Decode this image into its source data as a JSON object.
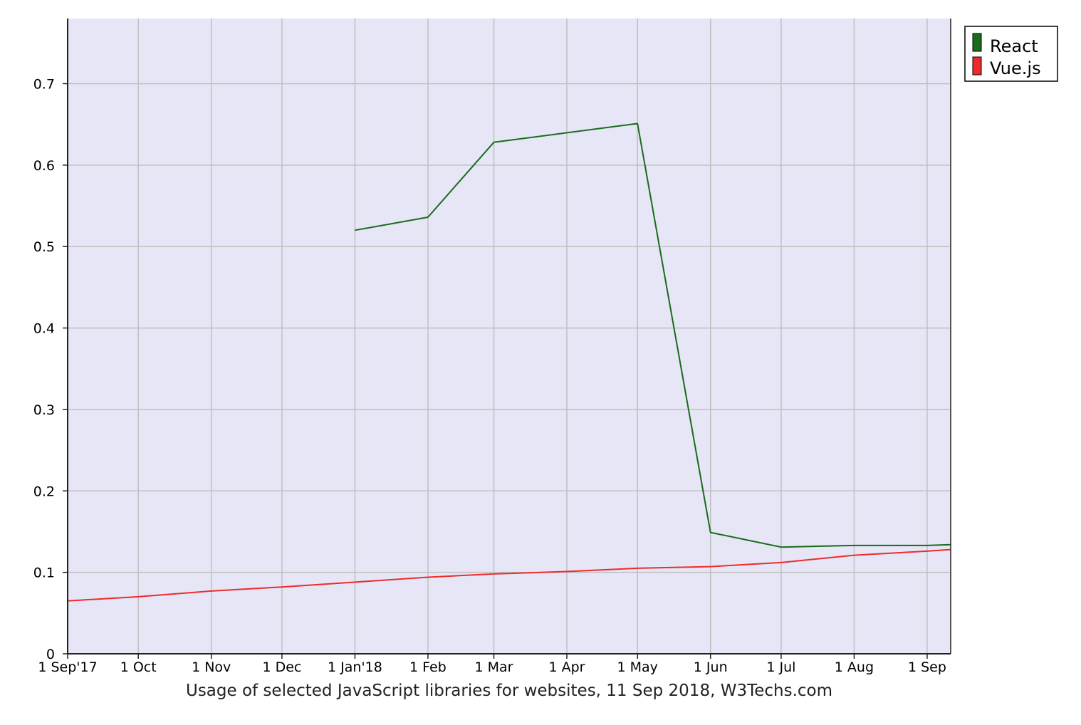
{
  "chart_data": {
    "type": "line",
    "title": "",
    "caption": "Usage of selected JavaScript libraries for websites, 11 Sep 2018, W3Techs.com",
    "xlabel": "",
    "ylabel": "",
    "ylim": [
      0,
      0.78
    ],
    "y_ticks": [
      {
        "value": 0,
        "label": "0"
      },
      {
        "value": 0.1,
        "label": "0.1"
      },
      {
        "value": 0.2,
        "label": "0.2"
      },
      {
        "value": 0.3,
        "label": "0.3"
      },
      {
        "value": 0.4,
        "label": "0.4"
      },
      {
        "value": 0.5,
        "label": "0.5"
      },
      {
        "value": 0.6,
        "label": "0.6"
      },
      {
        "value": 0.7,
        "label": "0.7"
      }
    ],
    "x_range": [
      "2017-09-01",
      "2018-09-11"
    ],
    "x_ticks": [
      {
        "date": "2017-09-01",
        "label": "1 Sep'17"
      },
      {
        "date": "2017-10-01",
        "label": "1 Oct"
      },
      {
        "date": "2017-11-01",
        "label": "1 Nov"
      },
      {
        "date": "2017-12-01",
        "label": "1 Dec"
      },
      {
        "date": "2018-01-01",
        "label": "1 Jan'18"
      },
      {
        "date": "2018-02-01",
        "label": "1 Feb"
      },
      {
        "date": "2018-03-01",
        "label": "1 Mar"
      },
      {
        "date": "2018-04-01",
        "label": "1 Apr"
      },
      {
        "date": "2018-05-01",
        "label": "1 May"
      },
      {
        "date": "2018-06-01",
        "label": "1 Jun"
      },
      {
        "date": "2018-07-01",
        "label": "1 Jul"
      },
      {
        "date": "2018-08-01",
        "label": "1 Aug"
      },
      {
        "date": "2018-09-01",
        "label": "1 Sep"
      }
    ],
    "grid": true,
    "legend_position": "top-right",
    "series": [
      {
        "name": "React",
        "color": "#1a6b1a",
        "points": [
          {
            "x": "2018-01-01",
            "y": 0.52
          },
          {
            "x": "2018-02-01",
            "y": 0.536
          },
          {
            "x": "2018-03-01",
            "y": 0.628
          },
          {
            "x": "2018-05-01",
            "y": 0.651
          },
          {
            "x": "2018-06-01",
            "y": 0.149
          },
          {
            "x": "2018-07-01",
            "y": 0.131
          },
          {
            "x": "2018-08-01",
            "y": 0.133
          },
          {
            "x": "2018-09-01",
            "y": 0.133
          },
          {
            "x": "2018-09-11",
            "y": 0.134
          }
        ]
      },
      {
        "name": "Vue.js",
        "color": "#ee2b2b",
        "points": [
          {
            "x": "2017-09-01",
            "y": 0.065
          },
          {
            "x": "2017-10-01",
            "y": 0.07
          },
          {
            "x": "2017-11-01",
            "y": 0.077
          },
          {
            "x": "2017-12-01",
            "y": 0.082
          },
          {
            "x": "2018-01-01",
            "y": 0.088
          },
          {
            "x": "2018-02-01",
            "y": 0.094
          },
          {
            "x": "2018-03-01",
            "y": 0.098
          },
          {
            "x": "2018-04-01",
            "y": 0.101
          },
          {
            "x": "2018-05-01",
            "y": 0.105
          },
          {
            "x": "2018-06-01",
            "y": 0.107
          },
          {
            "x": "2018-07-01",
            "y": 0.112
          },
          {
            "x": "2018-08-01",
            "y": 0.121
          },
          {
            "x": "2018-09-01",
            "y": 0.126
          },
          {
            "x": "2018-09-11",
            "y": 0.128
          }
        ]
      }
    ],
    "colors": {
      "plot_background": "#e6e6f6",
      "grid": "#c0c0c0",
      "axis": "#222222"
    }
  }
}
